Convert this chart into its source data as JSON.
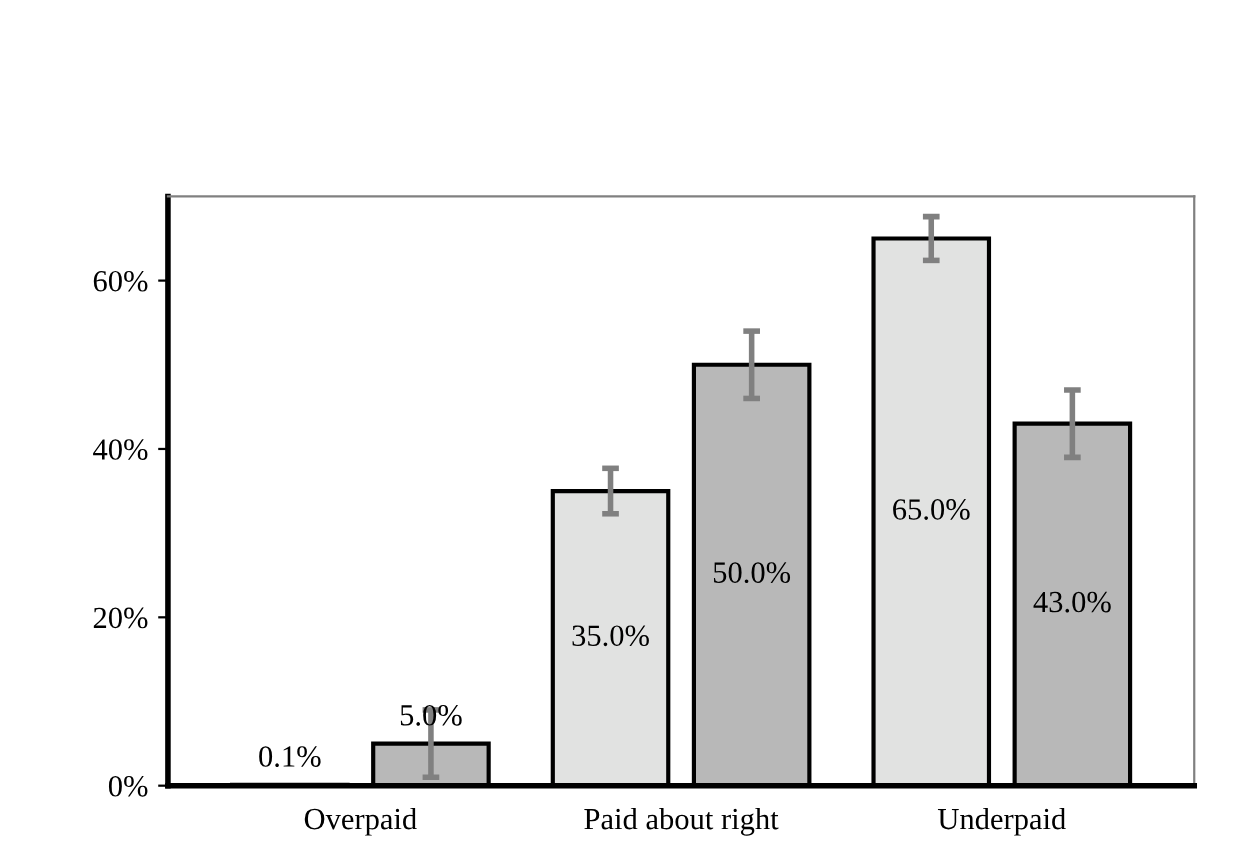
{
  "chart_data": {
    "type": "bar",
    "categories": [
      "Overpaid",
      "Paid about right",
      "Underpaid"
    ],
    "series": [
      {
        "color": "#e1e2e1",
        "values": [
          0.1,
          35,
          65
        ],
        "errors": [
          null,
          2.7,
          2.6
        ],
        "value_labels": [
          "0.1%",
          "35.0%",
          "65.0%"
        ]
      },
      {
        "color": "#b8b8b8",
        "values": [
          5,
          50,
          43
        ],
        "errors": [
          4,
          4,
          4
        ],
        "value_labels": [
          "5.0%",
          "50.0%",
          "43.0%"
        ]
      }
    ],
    "ylim": [
      0,
      70
    ],
    "yticks": [
      {
        "value": 0,
        "label": "0%"
      },
      {
        "value": 20,
        "label": "20%"
      },
      {
        "value": 40,
        "label": "40%"
      },
      {
        "value": 60,
        "label": "60%"
      }
    ],
    "grid": false
  }
}
